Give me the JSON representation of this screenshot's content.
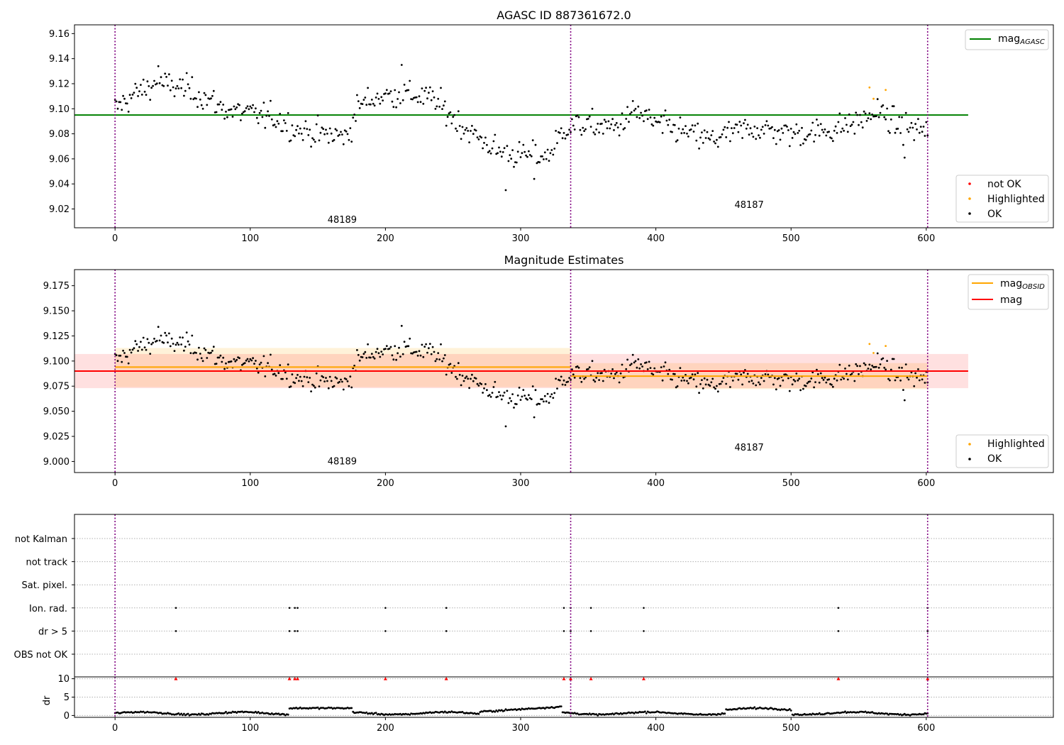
{
  "figure": {
    "bg_color": "#ffffff",
    "colors": {
      "ok": "#000000",
      "highlighted": "#ffa500",
      "not_ok": "#ff0000",
      "agasc_line": "#008000",
      "mag_line": "#ff0000",
      "mag_obsid_line": "#ffa500",
      "obs_boundary": "#800080",
      "grid": "#b0b0b0"
    }
  },
  "chart_data": [
    {
      "type": "scatter",
      "panel": "top",
      "title": "AGASC ID 887361672.0",
      "xlim": [
        -30,
        694
      ],
      "ylim": [
        9.005,
        9.167
      ],
      "xticks": [
        0,
        100,
        200,
        300,
        400,
        500,
        600
      ],
      "yticks": [
        9.02,
        9.04,
        9.06,
        9.08,
        9.1,
        9.12,
        9.14,
        9.16
      ],
      "ytick_labels": [
        "9.02",
        "9.04",
        "9.06",
        "9.08",
        "9.10",
        "9.12",
        "9.14",
        "9.16"
      ],
      "hlines": [
        {
          "name": "mag_AGASC",
          "y": 9.095,
          "x": [
            -30,
            631
          ],
          "color": "#008000"
        }
      ],
      "obs_boundaries": [
        0,
        337,
        601
      ],
      "obs_labels": [
        {
          "text": "48189",
          "x": 168,
          "y": 9.009
        },
        {
          "text": "48187",
          "x": 469,
          "y": 9.021
        }
      ],
      "legend_upper": [
        {
          "name": "mag",
          "sub": "AGASC",
          "kind": "line",
          "color": "#008000"
        }
      ],
      "legend_lower": [
        {
          "name": "not OK",
          "kind": "marker",
          "color": "#ff0000"
        },
        {
          "name": "Highlighted",
          "kind": "marker",
          "color": "#ffa500"
        },
        {
          "name": "OK",
          "kind": "marker",
          "color": "#000000"
        }
      ],
      "series": [
        {
          "name": "OK",
          "generator": "mag"
        }
      ],
      "highlighted": [
        [
          558,
          9.117
        ],
        [
          561,
          9.108
        ],
        [
          570,
          9.115
        ]
      ]
    },
    {
      "type": "scatter",
      "panel": "middle",
      "title": "Magnitude Estimates",
      "xlim": [
        -30,
        694
      ],
      "ylim": [
        8.989,
        9.191
      ],
      "xticks": [
        0,
        100,
        200,
        300,
        400,
        500,
        600
      ],
      "yticks": [
        9.0,
        9.025,
        9.05,
        9.075,
        9.1,
        9.125,
        9.15,
        9.175
      ],
      "ytick_labels": [
        "9.000",
        "9.025",
        "9.050",
        "9.075",
        "9.100",
        "9.125",
        "9.150",
        "9.175"
      ],
      "bands": [
        {
          "x": [
            0,
            337
          ],
          "y": [
            9.074,
            9.113
          ],
          "color": "#ffa500",
          "opacity": 0.15
        },
        {
          "x": [
            337,
            601
          ],
          "y": [
            9.072,
            9.098
          ],
          "color": "#ffa500",
          "opacity": 0.15
        },
        {
          "x": [
            -30,
            631
          ],
          "y": [
            9.073,
            9.107
          ],
          "color": "#ff0000",
          "opacity": 0.12
        }
      ],
      "hlines": [
        {
          "name": "mag_OBSID",
          "y": 9.094,
          "x": [
            0,
            337
          ],
          "color": "#ffa500"
        },
        {
          "name": "mag_OBSID",
          "y": 9.085,
          "x": [
            337,
            601
          ],
          "color": "#ffa500"
        },
        {
          "name": "mag",
          "y": 9.09,
          "x": [
            -30,
            631
          ],
          "color": "#ff0000"
        }
      ],
      "obs_boundaries": [
        0,
        337,
        601
      ],
      "obs_labels": [
        {
          "text": "48189",
          "x": 168,
          "y": 8.997
        },
        {
          "text": "48187",
          "x": 469,
          "y": 9.011
        }
      ],
      "legend_upper": [
        {
          "name": "mag",
          "sub": "OBSID",
          "kind": "line",
          "color": "#ffa500"
        },
        {
          "name": "mag",
          "sub": "",
          "kind": "line",
          "color": "#ff0000"
        }
      ],
      "legend_lower": [
        {
          "name": "Highlighted",
          "kind": "marker",
          "color": "#ffa500"
        },
        {
          "name": "OK",
          "kind": "marker",
          "color": "#000000"
        }
      ],
      "series": [
        {
          "name": "OK",
          "generator": "mag"
        }
      ],
      "highlighted": [
        [
          558,
          9.117
        ],
        [
          561,
          9.108
        ],
        [
          570,
          9.115
        ]
      ]
    },
    {
      "type": "scatter",
      "panel": "flags",
      "xlim": [
        -30,
        694
      ],
      "categories": [
        "not Kalman",
        "not track",
        "Sat. pixel.",
        "Ion. rad.",
        "dr > 5",
        "OBS not OK"
      ],
      "flag_points": {
        "Ion. rad.": [
          45,
          129,
          133,
          135,
          200,
          245,
          332,
          337,
          352,
          391,
          535,
          601
        ],
        "dr > 5": [
          45,
          129,
          133,
          135,
          200,
          245,
          332,
          337,
          352,
          391,
          535,
          601
        ]
      },
      "obs_boundaries": [
        0,
        337,
        601
      ]
    },
    {
      "type": "scatter",
      "panel": "dr",
      "ylabel": "dr",
      "xlim": [
        -30,
        694
      ],
      "ylim": [
        -0.5,
        10.5
      ],
      "xticks": [
        0,
        100,
        200,
        300,
        400,
        500,
        600
      ],
      "yticks": [
        0,
        5,
        10
      ],
      "ytick_labels": [
        "0",
        "5",
        "10"
      ],
      "clipped_markers": [
        45,
        129,
        133,
        135,
        200,
        245,
        332,
        337,
        352,
        391,
        535,
        601
      ],
      "series": [
        {
          "name": "OK",
          "generator": "dr"
        }
      ],
      "obs_boundaries": [
        0,
        337,
        601
      ]
    }
  ]
}
